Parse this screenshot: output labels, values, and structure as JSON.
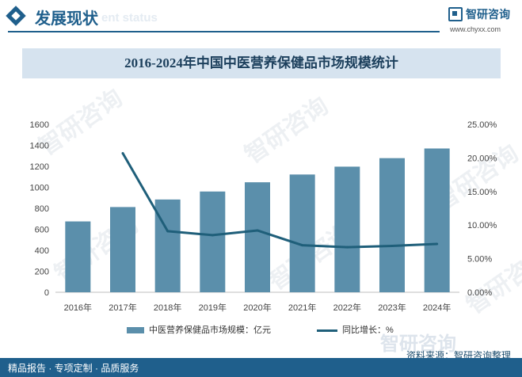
{
  "header": {
    "title": "发展现状",
    "ghost_text": "ent status",
    "logo_text": "智研咨询",
    "logo_url": "www.chyxx.com"
  },
  "chart_title": "2016-2024年中国中医营养保健品市场规模统计",
  "chart_data": {
    "type": "bar",
    "title": "2016-2024年中国中医营养保健品市场规模统计",
    "categories": [
      "2016年",
      "2017年",
      "2018年",
      "2019年",
      "2020年",
      "2021年",
      "2022年",
      "2023年",
      "2024年"
    ],
    "series": [
      {
        "name": "中医营养保健品市场规模：亿元",
        "type": "bar",
        "axis": "left",
        "values": [
          675,
          812,
          884,
          960,
          1048,
          1122,
          1197,
          1278,
          1370
        ]
      },
      {
        "name": "同比增长：%",
        "type": "line",
        "axis": "right",
        "values": [
          null,
          20.7,
          9.1,
          8.5,
          9.2,
          7.0,
          6.7,
          6.9,
          7.2
        ]
      }
    ],
    "y_left": {
      "min": 0,
      "max": 1600,
      "ticks": [
        "0",
        "200",
        "400",
        "600",
        "800",
        "1000",
        "1200",
        "1400",
        "1600"
      ]
    },
    "y_right": {
      "min": 0,
      "max": 25,
      "ticks": [
        "0.00%",
        "5.00%",
        "10.00%",
        "15.00%",
        "20.00%",
        "25.00%"
      ]
    },
    "legend_position": "bottom",
    "grid": false,
    "colors": {
      "bar": "#5b8fab",
      "line": "#1f5f7a"
    }
  },
  "legend": {
    "bar_label": "中医营养保健品市场规模：亿元",
    "line_label": "同比增长：%"
  },
  "watermark_text": "智研咨询",
  "source_text": "资料来源：智研咨询整理",
  "footer_text": "精品报告 · 专项定制 · 品质服务"
}
